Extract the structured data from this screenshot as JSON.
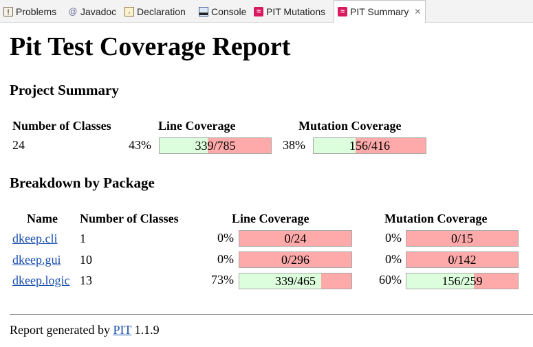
{
  "tabs": [
    {
      "label": "Problems",
      "icon": "problems-icon"
    },
    {
      "label": "Javadoc",
      "icon": "javadoc-icon"
    },
    {
      "label": "Declaration",
      "icon": "declaration-icon"
    },
    {
      "label": "Console",
      "icon": "console-icon"
    },
    {
      "label": "PIT Mutations",
      "icon": "pit-icon"
    },
    {
      "label": "PIT Summary",
      "icon": "pit-icon",
      "active": true
    }
  ],
  "report": {
    "title": "Pit Test Coverage Report",
    "project_summary": {
      "heading": "Project Summary",
      "headers": {
        "classes": "Number of Classes",
        "line": "Line Coverage",
        "mutation": "Mutation Coverage"
      },
      "classes": "24",
      "line": {
        "percent": "43%",
        "text": "339/785",
        "covered": 339,
        "total": 785
      },
      "mutation": {
        "percent": "38%",
        "text": "156/416",
        "covered": 156,
        "total": 416
      }
    },
    "breakdown": {
      "heading": "Breakdown by Package",
      "headers": {
        "name": "Name",
        "classes": "Number of Classes",
        "line": "Line Coverage",
        "mutation": "Mutation Coverage"
      },
      "rows": [
        {
          "name": "dkeep.cli",
          "classes": "1",
          "line": {
            "percent": "0%",
            "text": "0/24",
            "covered": 0,
            "total": 24
          },
          "mutation": {
            "percent": "0%",
            "text": "0/15",
            "covered": 0,
            "total": 15
          }
        },
        {
          "name": "dkeep.gui",
          "classes": "10",
          "line": {
            "percent": "0%",
            "text": "0/296",
            "covered": 0,
            "total": 296
          },
          "mutation": {
            "percent": "0%",
            "text": "0/142",
            "covered": 0,
            "total": 142
          }
        },
        {
          "name": "dkeep.logic",
          "classes": "13",
          "line": {
            "percent": "73%",
            "text": "339/465",
            "covered": 339,
            "total": 465
          },
          "mutation": {
            "percent": "60%",
            "text": "156/259",
            "covered": 156,
            "total": 259
          }
        }
      ]
    },
    "footer": {
      "prefix": "Report generated by",
      "link": "PIT",
      "version": "1.1.9"
    }
  },
  "colors": {
    "covered": "#ddfedd",
    "uncovered": "#ffaaaa",
    "link": "#1a4fae",
    "pit_icon": "#d81b60"
  }
}
